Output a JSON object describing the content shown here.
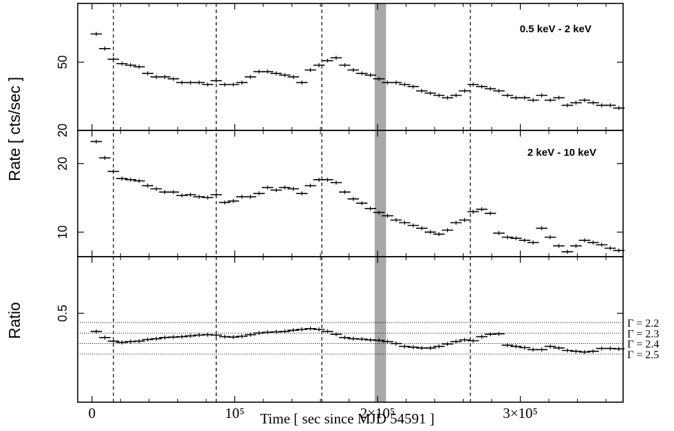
{
  "chart_data": {
    "type": "scatter",
    "ylabel_top": "Rate [ cts/sec ]",
    "ylabel_bottom": "Ratio",
    "xlabel": "Time [ sec since MJD 54591 ]",
    "xlim": [
      -10000,
      372000
    ],
    "x_ticks": [
      {
        "value": 0,
        "label": "0"
      },
      {
        "value": 100000,
        "label": "10⁵"
      },
      {
        "value": 200000,
        "label": "2×10⁵"
      },
      {
        "value": 300000,
        "label": "3×10⁵"
      }
    ],
    "vertical_lines": [
      15000,
      87000,
      161000,
      265000
    ],
    "shaded_band": [
      198000,
      206000
    ],
    "bin_halfwidth": 4000,
    "panels": [
      {
        "name": "0.5 keV - 2 keV",
        "label": "0.5 keV - 2 keV",
        "ylim": [
          20,
          110
        ],
        "y_ticks": [
          {
            "value": 50,
            "label": "50"
          },
          {
            "value": 20,
            "label": "20"
          }
        ],
        "x": [
          3000,
          9000,
          15000,
          21000,
          27000,
          33000,
          39000,
          45000,
          51000,
          57000,
          63000,
          69000,
          75000,
          81000,
          87000,
          93000,
          99000,
          105000,
          111000,
          117000,
          123000,
          129000,
          135000,
          141000,
          147000,
          153000,
          159000,
          165000,
          171000,
          177000,
          183000,
          189000,
          195000,
          201000,
          207000,
          213000,
          219000,
          225000,
          231000,
          237000,
          243000,
          249000,
          255000,
          261000,
          267000,
          273000,
          279000,
          285000,
          291000,
          297000,
          303000,
          309000,
          315000,
          321000,
          327000,
          333000,
          339000,
          345000,
          351000,
          357000,
          363000,
          369000
        ],
        "y": [
          73,
          60,
          52,
          49,
          48,
          47,
          43,
          41,
          41,
          40,
          38,
          38,
          38,
          37,
          39,
          37,
          37,
          38,
          41,
          44,
          44,
          43,
          42,
          41,
          38,
          45,
          48,
          51,
          53,
          48,
          45,
          43,
          42,
          40,
          38,
          38,
          37,
          36,
          34,
          33,
          32,
          31,
          32,
          34,
          37,
          36,
          35,
          34,
          32,
          31,
          31,
          30,
          32,
          30,
          31,
          28,
          29,
          30,
          29,
          28,
          28,
          27
        ]
      },
      {
        "name": "2 keV - 10 keV",
        "label": "2 keV - 10 keV",
        "ylim": [
          7.8,
          28
        ],
        "y_ticks": [
          {
            "value": 20,
            "label": "20"
          },
          {
            "value": 10,
            "label": "10"
          }
        ],
        "x": [
          3000,
          9000,
          15000,
          21000,
          27000,
          33000,
          39000,
          45000,
          51000,
          57000,
          63000,
          69000,
          75000,
          81000,
          87000,
          93000,
          99000,
          105000,
          111000,
          117000,
          123000,
          129000,
          135000,
          141000,
          147000,
          153000,
          159000,
          165000,
          171000,
          177000,
          183000,
          189000,
          195000,
          201000,
          207000,
          213000,
          219000,
          225000,
          231000,
          237000,
          243000,
          249000,
          255000,
          261000,
          267000,
          273000,
          279000,
          285000,
          291000,
          297000,
          303000,
          309000,
          315000,
          321000,
          327000,
          333000,
          339000,
          345000,
          351000,
          357000,
          363000,
          369000
        ],
        "y": [
          25,
          21.2,
          18.5,
          17.2,
          17.0,
          16.8,
          16.0,
          15.5,
          15.0,
          15.0,
          14.5,
          14.6,
          14.3,
          14.2,
          14.6,
          13.5,
          13.7,
          14.3,
          14.3,
          14.8,
          15.7,
          15.3,
          15.7,
          15.5,
          14.8,
          16.0,
          17.0,
          17.0,
          16.5,
          15.0,
          14.0,
          13.4,
          12.7,
          12.2,
          11.8,
          11.3,
          11.0,
          10.7,
          10.4,
          10.0,
          9.8,
          10.2,
          11.0,
          11.3,
          12.3,
          12.6,
          12.1,
          9.9,
          9.5,
          9.4,
          9.2,
          9.0,
          10.4,
          9.5,
          8.7,
          8.2,
          8.7,
          9.2,
          9.0,
          8.8,
          8.5,
          8.3
        ]
      },
      {
        "name": "Ratio",
        "label": "",
        "ylim": [
          0.28,
          0.64
        ],
        "y_ticks": [
          {
            "value": 0.5,
            "label": "0.5"
          }
        ],
        "x": [
          3000,
          9000,
          15000,
          21000,
          27000,
          33000,
          39000,
          45000,
          51000,
          57000,
          63000,
          69000,
          75000,
          81000,
          87000,
          93000,
          99000,
          105000,
          111000,
          117000,
          123000,
          129000,
          135000,
          141000,
          147000,
          153000,
          159000,
          165000,
          171000,
          177000,
          183000,
          189000,
          195000,
          201000,
          207000,
          213000,
          219000,
          225000,
          231000,
          237000,
          243000,
          249000,
          255000,
          261000,
          267000,
          273000,
          279000,
          285000,
          291000,
          297000,
          303000,
          309000,
          315000,
          321000,
          327000,
          333000,
          339000,
          345000,
          351000,
          357000,
          363000,
          369000
        ],
        "y": [
          0.455,
          0.44,
          0.431,
          0.428,
          0.43,
          0.431,
          0.435,
          0.437,
          0.44,
          0.441,
          0.442,
          0.444,
          0.446,
          0.447,
          0.446,
          0.442,
          0.441,
          0.443,
          0.447,
          0.451,
          0.453,
          0.454,
          0.455,
          0.458,
          0.46,
          0.462,
          0.46,
          0.455,
          0.448,
          0.44,
          0.437,
          0.436,
          0.434,
          0.433,
          0.43,
          0.425,
          0.418,
          0.416,
          0.414,
          0.414,
          0.418,
          0.424,
          0.43,
          0.434,
          0.432,
          0.442,
          0.448,
          0.449,
          0.421,
          0.418,
          0.415,
          0.41,
          0.41,
          0.418,
          0.414,
          0.408,
          0.406,
          0.404,
          0.406,
          0.413,
          0.413,
          0.412
        ],
        "reference_lines": [
          {
            "value": 0.477,
            "label": "Γ  = 2.2"
          },
          {
            "value": 0.451,
            "label": "Γ  = 2.3"
          },
          {
            "value": 0.425,
            "label": "Γ  = 2.4"
          },
          {
            "value": 0.399,
            "label": "Γ  = 2.5"
          }
        ]
      }
    ]
  }
}
